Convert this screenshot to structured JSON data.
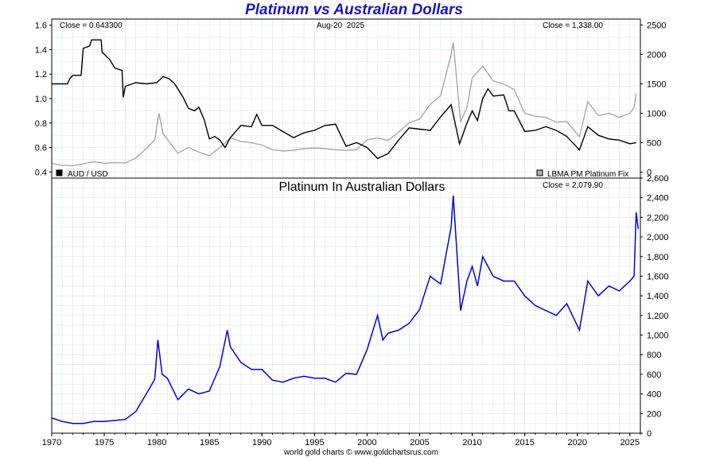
{
  "title": "Platinum vs Australian Dollars",
  "footer": "world gold charts © www.goldchartsrus.com",
  "colors": {
    "title": "#1515c8",
    "aud_line": "#000000",
    "platinum_usd_line": "#a8a8a8",
    "platinum_aud_line": "#0000e6",
    "grid": "#d4e6f0",
    "frame": "#000000"
  },
  "chart_data": [
    {
      "type": "line",
      "panel": "top",
      "date_label": "Aug-20  2025",
      "left_annotation": "Close = 0.643300",
      "right_annotation": "Close = 1,338.00",
      "left_axis": {
        "ticks": [
          "0.4",
          "0.6",
          "0.8",
          "1.0",
          "1.2",
          "1.4",
          "1.6"
        ],
        "ylim": [
          0.35,
          1.65
        ]
      },
      "right_axis": {
        "ticks": [
          "0",
          "500",
          "1000",
          "1500",
          "2000",
          "2500"
        ],
        "ylim": [
          -100,
          2600
        ]
      },
      "grid": true,
      "legend": "bottom",
      "series": [
        {
          "name": "AUD / USD",
          "axis": "left",
          "points": [
            [
              1970.0,
              1.12
            ],
            [
              1971.5,
              1.12
            ],
            [
              1971.7,
              1.16
            ],
            [
              1972.0,
              1.19
            ],
            [
              1972.8,
              1.19
            ],
            [
              1973.0,
              1.41
            ],
            [
              1973.6,
              1.43
            ],
            [
              1973.8,
              1.48
            ],
            [
              1974.7,
              1.48
            ],
            [
              1974.8,
              1.38
            ],
            [
              1975.5,
              1.32
            ],
            [
              1976.0,
              1.25
            ],
            [
              1976.7,
              1.23
            ],
            [
              1976.8,
              1.01
            ],
            [
              1977.0,
              1.1
            ],
            [
              1978.0,
              1.13
            ],
            [
              1979.0,
              1.12
            ],
            [
              1980.0,
              1.13
            ],
            [
              1980.6,
              1.18
            ],
            [
              1981.2,
              1.16
            ],
            [
              1981.7,
              1.12
            ],
            [
              1982.5,
              1.01
            ],
            [
              1983.0,
              0.92
            ],
            [
              1983.6,
              0.9
            ],
            [
              1984.0,
              0.93
            ],
            [
              1984.5,
              0.83
            ],
            [
              1985.0,
              0.67
            ],
            [
              1985.5,
              0.69
            ],
            [
              1986.0,
              0.66
            ],
            [
              1986.5,
              0.6
            ],
            [
              1987.0,
              0.68
            ],
            [
              1988.0,
              0.78
            ],
            [
              1989.0,
              0.77
            ],
            [
              1989.5,
              0.87
            ],
            [
              1990.0,
              0.78
            ],
            [
              1991.0,
              0.78
            ],
            [
              1992.0,
              0.73
            ],
            [
              1993.0,
              0.68
            ],
            [
              1994.0,
              0.72
            ],
            [
              1995.0,
              0.74
            ],
            [
              1996.0,
              0.78
            ],
            [
              1997.0,
              0.79
            ],
            [
              1998.0,
              0.61
            ],
            [
              1999.0,
              0.64
            ],
            [
              2000.0,
              0.6
            ],
            [
              2001.0,
              0.51
            ],
            [
              2002.0,
              0.55
            ],
            [
              2003.0,
              0.66
            ],
            [
              2004.0,
              0.76
            ],
            [
              2005.0,
              0.75
            ],
            [
              2006.0,
              0.74
            ],
            [
              2007.0,
              0.85
            ],
            [
              2008.0,
              0.95
            ],
            [
              2008.8,
              0.63
            ],
            [
              2009.5,
              0.8
            ],
            [
              2010.0,
              0.9
            ],
            [
              2010.5,
              0.82
            ],
            [
              2011.0,
              1.0
            ],
            [
              2011.5,
              1.08
            ],
            [
              2012.0,
              1.02
            ],
            [
              2013.0,
              1.03
            ],
            [
              2013.5,
              0.9
            ],
            [
              2014.0,
              0.9
            ],
            [
              2015.0,
              0.73
            ],
            [
              2016.0,
              0.74
            ],
            [
              2017.0,
              0.77
            ],
            [
              2018.0,
              0.74
            ],
            [
              2019.0,
              0.69
            ],
            [
              2020.2,
              0.58
            ],
            [
              2021.0,
              0.77
            ],
            [
              2022.0,
              0.7
            ],
            [
              2023.0,
              0.67
            ],
            [
              2024.0,
              0.66
            ],
            [
              2025.0,
              0.63
            ],
            [
              2025.6,
              0.64
            ]
          ]
        },
        {
          "name": "LBMA PM Platinum Fix",
          "axis": "right",
          "points": [
            [
              1970.0,
              150
            ],
            [
              1971.0,
              115
            ],
            [
              1972.0,
              110
            ],
            [
              1973.0,
              140
            ],
            [
              1974.0,
              180
            ],
            [
              1975.0,
              150
            ],
            [
              1976.0,
              160
            ],
            [
              1977.0,
              155
            ],
            [
              1978.0,
              240
            ],
            [
              1979.0,
              400
            ],
            [
              1979.8,
              550
            ],
            [
              1980.2,
              1000
            ],
            [
              1980.6,
              650
            ],
            [
              1981.0,
              560
            ],
            [
              1982.0,
              320
            ],
            [
              1983.0,
              420
            ],
            [
              1984.0,
              340
            ],
            [
              1985.0,
              280
            ],
            [
              1986.0,
              420
            ],
            [
              1987.0,
              580
            ],
            [
              1988.0,
              520
            ],
            [
              1989.0,
              500
            ],
            [
              1990.0,
              460
            ],
            [
              1991.0,
              380
            ],
            [
              1992.0,
              360
            ],
            [
              1993.0,
              370
            ],
            [
              1994.0,
              400
            ],
            [
              1995.0,
              410
            ],
            [
              1996.0,
              400
            ],
            [
              1997.0,
              380
            ],
            [
              1998.0,
              370
            ],
            [
              1999.0,
              380
            ],
            [
              2000.0,
              550
            ],
            [
              2001.0,
              580
            ],
            [
              2002.0,
              540
            ],
            [
              2003.0,
              680
            ],
            [
              2004.0,
              840
            ],
            [
              2005.0,
              900
            ],
            [
              2006.0,
              1150
            ],
            [
              2007.0,
              1300
            ],
            [
              2008.0,
              2000
            ],
            [
              2008.2,
              2200
            ],
            [
              2008.9,
              850
            ],
            [
              2009.5,
              1100
            ],
            [
              2010.0,
              1600
            ],
            [
              2011.0,
              1800
            ],
            [
              2012.0,
              1550
            ],
            [
              2013.0,
              1500
            ],
            [
              2014.0,
              1400
            ],
            [
              2015.0,
              1000
            ],
            [
              2016.0,
              950
            ],
            [
              2017.0,
              930
            ],
            [
              2018.0,
              850
            ],
            [
              2019.0,
              860
            ],
            [
              2020.2,
              600
            ],
            [
              2021.0,
              1200
            ],
            [
              2022.0,
              960
            ],
            [
              2023.0,
              1000
            ],
            [
              2024.0,
              930
            ],
            [
              2025.0,
              1000
            ],
            [
              2025.4,
              1100
            ],
            [
              2025.6,
              1340
            ]
          ]
        }
      ]
    },
    {
      "type": "line",
      "panel": "bottom",
      "title": "Platinum In Australian Dollars",
      "right_annotation": "Close = 2,079.90",
      "right_axis": {
        "ticks": [
          "0",
          "200",
          "400",
          "600",
          "800",
          "1,000",
          "1,200",
          "1,400",
          "1,600",
          "1,800",
          "2,000",
          "2,200",
          "2,400",
          "2,600"
        ],
        "ylim": [
          0,
          2600
        ]
      },
      "x_axis": {
        "ticks": [
          "1970",
          "1975",
          "1980",
          "1985",
          "1990",
          "1995",
          "2000",
          "2005",
          "2010",
          "2015",
          "2020",
          "2025"
        ],
        "xlim": [
          1970,
          2026
        ]
      },
      "grid": true,
      "series": [
        {
          "name": "Platinum In Australian Dollars",
          "points": [
            [
              1970.0,
              155
            ],
            [
              1971.0,
              120
            ],
            [
              1972.0,
              100
            ],
            [
              1973.0,
              100
            ],
            [
              1974.0,
              120
            ],
            [
              1975.0,
              120
            ],
            [
              1976.0,
              130
            ],
            [
              1977.0,
              140
            ],
            [
              1978.0,
              220
            ],
            [
              1979.0,
              400
            ],
            [
              1979.8,
              550
            ],
            [
              1980.1,
              950
            ],
            [
              1980.5,
              600
            ],
            [
              1981.0,
              560
            ],
            [
              1982.0,
              340
            ],
            [
              1983.0,
              450
            ],
            [
              1984.0,
              400
            ],
            [
              1985.0,
              430
            ],
            [
              1986.0,
              680
            ],
            [
              1986.7,
              1050
            ],
            [
              1987.0,
              880
            ],
            [
              1988.0,
              720
            ],
            [
              1989.0,
              650
            ],
            [
              1990.0,
              650
            ],
            [
              1991.0,
              540
            ],
            [
              1992.0,
              520
            ],
            [
              1993.0,
              560
            ],
            [
              1994.0,
              580
            ],
            [
              1995.0,
              560
            ],
            [
              1996.0,
              560
            ],
            [
              1997.0,
              520
            ],
            [
              1998.0,
              610
            ],
            [
              1999.0,
              600
            ],
            [
              2000.0,
              850
            ],
            [
              2001.0,
              1200
            ],
            [
              2001.5,
              950
            ],
            [
              2002.0,
              1020
            ],
            [
              2003.0,
              1050
            ],
            [
              2004.0,
              1120
            ],
            [
              2005.0,
              1260
            ],
            [
              2006.0,
              1600
            ],
            [
              2007.0,
              1520
            ],
            [
              2008.0,
              2100
            ],
            [
              2008.2,
              2420
            ],
            [
              2008.9,
              1250
            ],
            [
              2009.5,
              1550
            ],
            [
              2010.0,
              1700
            ],
            [
              2010.5,
              1500
            ],
            [
              2011.0,
              1800
            ],
            [
              2012.0,
              1600
            ],
            [
              2013.0,
              1550
            ],
            [
              2014.0,
              1550
            ],
            [
              2015.0,
              1400
            ],
            [
              2016.0,
              1300
            ],
            [
              2017.0,
              1250
            ],
            [
              2018.0,
              1200
            ],
            [
              2019.0,
              1320
            ],
            [
              2020.2,
              1050
            ],
            [
              2021.0,
              1550
            ],
            [
              2022.0,
              1400
            ],
            [
              2023.0,
              1500
            ],
            [
              2024.0,
              1450
            ],
            [
              2025.0,
              1550
            ],
            [
              2025.4,
              1600
            ],
            [
              2025.6,
              2250
            ],
            [
              2025.8,
              2080
            ]
          ]
        }
      ]
    }
  ]
}
